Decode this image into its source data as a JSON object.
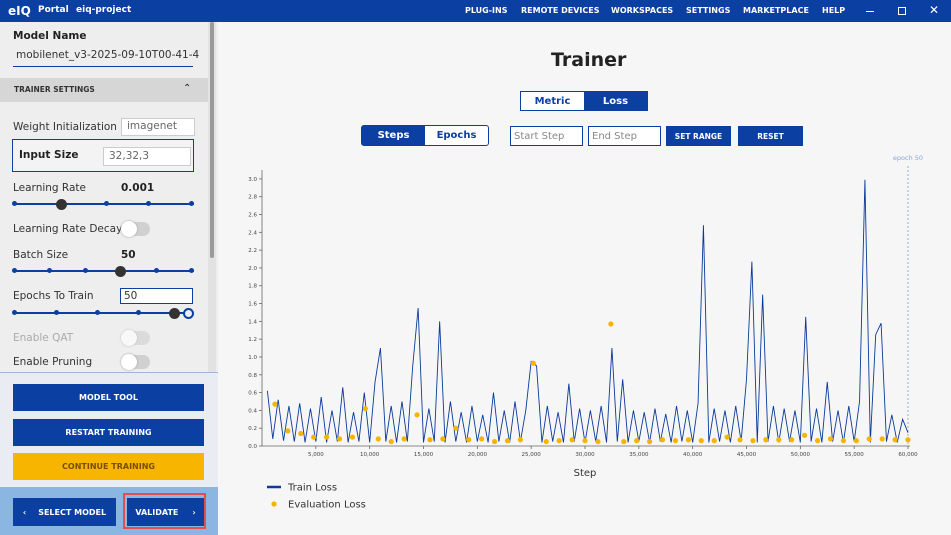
{
  "topbar": {
    "logo": "eIQ",
    "app": "Portal",
    "project": "eiq-project",
    "nav": [
      "PLUG-INS",
      "REMOTE DEVICES",
      "WORKSPACES",
      "SETTINGS",
      "MARKETPLACE",
      "HELP"
    ]
  },
  "sidebar": {
    "model_name_label": "Model Name",
    "model_name": "mobilenet_v3-2025-09-10T00-41-4",
    "section": "TRAINER SETTINGS",
    "weight_init_label": "Weight Initialization",
    "weight_init": "imagenet",
    "input_size_label": "Input Size",
    "input_size": "32,32,3",
    "learning_rate_label": "Learning Rate",
    "learning_rate": "0.001",
    "lr_decay_label": "Learning Rate Decay",
    "batch_size_label": "Batch Size",
    "batch_size": "50",
    "epochs_label": "Epochs To Train",
    "epochs": "50",
    "qat_label": "Enable QAT",
    "pruning_label": "Enable Pruning",
    "buttons": [
      "MODEL TOOL",
      "RESTART TRAINING",
      "CONTINUE TRAINING"
    ],
    "select_model": "SELECT MODEL",
    "validate": "VALIDATE"
  },
  "main": {
    "title": "Trainer",
    "view_tabs": [
      "Metric",
      "Loss"
    ],
    "unit_tabs": [
      "Steps",
      "Epochs"
    ],
    "start_placeholder": "Start Step",
    "end_placeholder": "End Step",
    "set_range": "SET RANGE",
    "reset": "RESET"
  },
  "chart_data": {
    "type": "line",
    "x_label": "Step",
    "annotation": {
      "text": "epoch 50",
      "x": 60000
    },
    "xlim": [
      0,
      60000
    ],
    "xticks": [
      {
        "value": 5000,
        "label": "5,000"
      },
      {
        "value": 10000,
        "label": "10,000"
      },
      {
        "value": 15000,
        "label": "15,000"
      },
      {
        "value": 20000,
        "label": "20,000"
      },
      {
        "value": 25000,
        "label": "25,000"
      },
      {
        "value": 30000,
        "label": "30,000"
      },
      {
        "value": 35000,
        "label": "35,000"
      },
      {
        "value": 40000,
        "label": "40,000"
      },
      {
        "value": 45000,
        "label": "45,000"
      },
      {
        "value": 50000,
        "label": "50,000"
      },
      {
        "value": 55000,
        "label": "55,000"
      },
      {
        "value": 60000,
        "label": "60,000"
      }
    ],
    "ylim": [
      0,
      3.1
    ],
    "yticks": [
      {
        "value": 0,
        "label": "0.0"
      },
      0.2,
      0.4,
      0.6,
      0.8,
      {
        "value": 1,
        "label": "1.0"
      },
      1.2,
      1.4,
      1.6,
      1.8,
      {
        "value": 2,
        "label": "2.0"
      },
      2.2,
      2.4,
      2.6,
      2.8,
      {
        "value": 3,
        "label": "3.0"
      }
    ],
    "series": [
      {
        "name": "Train Loss",
        "type": "line",
        "color": "#0b3a9a",
        "x": [
          500,
          1000,
          1500,
          2000,
          2500,
          3000,
          3500,
          4000,
          4500,
          5000,
          5500,
          6000,
          6500,
          7000,
          7500,
          8000,
          8500,
          9000,
          9500,
          10000,
          10500,
          11000,
          11500,
          12000,
          12500,
          13000,
          13500,
          14000,
          14500,
          15000,
          15500,
          16000,
          16500,
          17000,
          17500,
          18000,
          18500,
          19000,
          19500,
          20000,
          20500,
          21000,
          21500,
          22000,
          22500,
          23000,
          23500,
          24000,
          24500,
          25000,
          25500,
          26000,
          26500,
          27000,
          27500,
          28000,
          28500,
          29000,
          29500,
          30000,
          30500,
          31000,
          31500,
          32000,
          32500,
          33000,
          33500,
          34000,
          34500,
          35000,
          35500,
          36000,
          36500,
          37000,
          37500,
          38000,
          38500,
          39000,
          39500,
          40000,
          40500,
          41000,
          41500,
          42000,
          42500,
          43000,
          43500,
          44000,
          44500,
          45000,
          45500,
          46000,
          46500,
          47000,
          47500,
          48000,
          48500,
          49000,
          49500,
          50000,
          50500,
          51000,
          51500,
          52000,
          52500,
          53000,
          53500,
          54000,
          54500,
          55000,
          55500,
          56000,
          56500,
          57000,
          57500,
          58000,
          58500,
          59000,
          59500,
          60000
        ],
        "values": [
          0.62,
          0.08,
          0.52,
          0.06,
          0.45,
          0.05,
          0.48,
          0.04,
          0.42,
          0.05,
          0.55,
          0.04,
          0.4,
          0.05,
          0.66,
          0.04,
          0.38,
          0.05,
          0.6,
          0.04,
          0.72,
          1.1,
          0.05,
          0.45,
          0.04,
          0.5,
          0.05,
          0.9,
          1.55,
          0.04,
          0.42,
          0.05,
          1.4,
          0.04,
          0.5,
          0.05,
          0.38,
          0.04,
          0.45,
          0.05,
          0.35,
          0.04,
          0.6,
          0.05,
          0.4,
          0.04,
          0.5,
          0.05,
          0.4,
          0.95,
          0.9,
          0.04,
          0.45,
          0.05,
          0.38,
          0.04,
          0.7,
          0.05,
          0.42,
          0.04,
          0.4,
          0.05,
          0.45,
          0.04,
          1.1,
          0.05,
          0.75,
          0.04,
          0.4,
          0.05,
          0.38,
          0.04,
          0.42,
          0.05,
          0.36,
          0.04,
          0.45,
          0.05,
          0.4,
          0.04,
          0.48,
          2.48,
          0.04,
          0.42,
          0.05,
          0.4,
          0.04,
          0.45,
          0.05,
          0.75,
          2.07,
          0.04,
          1.7,
          0.05,
          0.45,
          0.04,
          0.42,
          0.05,
          0.4,
          0.04,
          1.45,
          0.05,
          0.42,
          0.04,
          0.72,
          0.05,
          0.4,
          0.04,
          0.45,
          0.05,
          0.5,
          2.99,
          0.04,
          1.25,
          1.38,
          0.05,
          0.35,
          0.04,
          0.3,
          0.15
        ]
      },
      {
        "name": "Evaluation Loss",
        "type": "scatter",
        "color": "#f5b400",
        "x": [
          1200,
          2400,
          3600,
          4800,
          6000,
          7200,
          8400,
          9600,
          10800,
          12000,
          13200,
          14400,
          15600,
          16800,
          18000,
          19200,
          20400,
          21600,
          22800,
          24000,
          25200,
          26400,
          27600,
          28800,
          30000,
          31200,
          32400,
          33600,
          34800,
          36000,
          37200,
          38400,
          39600,
          40800,
          42000,
          43200,
          44400,
          45600,
          46800,
          48000,
          49200,
          50400,
          51600,
          52800,
          54000,
          55200,
          56400,
          57600,
          58800,
          60000
        ],
        "values": [
          0.47,
          0.17,
          0.14,
          0.1,
          0.1,
          0.08,
          0.1,
          0.42,
          0.08,
          0.05,
          0.08,
          0.35,
          0.07,
          0.08,
          0.2,
          0.07,
          0.08,
          0.05,
          0.06,
          0.07,
          0.93,
          0.05,
          0.06,
          0.07,
          0.06,
          0.05,
          1.37,
          0.05,
          0.06,
          0.05,
          0.07,
          0.06,
          0.07,
          0.06,
          0.06,
          0.1,
          0.07,
          0.06,
          0.07,
          0.07,
          0.07,
          0.12,
          0.06,
          0.08,
          0.06,
          0.06,
          0.08,
          0.08,
          0.07,
          0.07
        ]
      }
    ]
  }
}
